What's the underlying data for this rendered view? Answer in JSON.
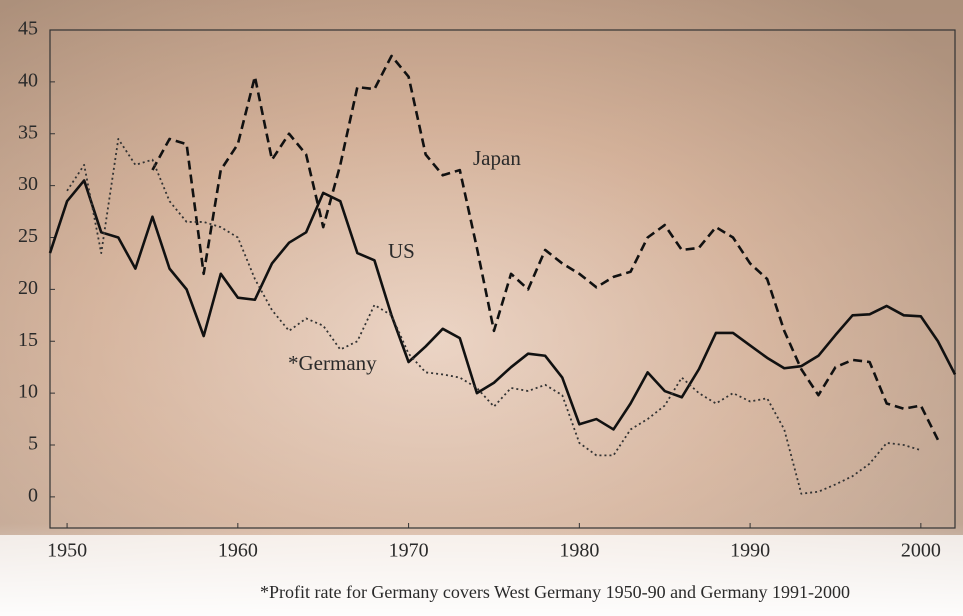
{
  "chart_data": {
    "type": "line",
    "footnote": "*Profit rate for Germany covers West Germany 1950-90 and Germany 1991-2000",
    "x": [
      1949,
      1950,
      1951,
      1952,
      1953,
      1954,
      1955,
      1956,
      1957,
      1958,
      1959,
      1960,
      1961,
      1962,
      1963,
      1964,
      1965,
      1966,
      1967,
      1968,
      1969,
      1970,
      1971,
      1972,
      1973,
      1974,
      1975,
      1976,
      1977,
      1978,
      1979,
      1980,
      1981,
      1982,
      1983,
      1984,
      1985,
      1986,
      1987,
      1988,
      1989,
      1990,
      1991,
      1992,
      1993,
      1994,
      1995,
      1996,
      1997,
      1998,
      1999,
      2000,
      2001,
      2002
    ],
    "series": [
      {
        "name": "US",
        "color": "#111111",
        "style": "solid",
        "values": [
          23.5,
          28.5,
          30.5,
          25.5,
          25,
          22,
          27,
          22,
          20,
          15.5,
          21.5,
          19.2,
          19,
          22.5,
          24.5,
          25.5,
          29.3,
          28.5,
          23.5,
          22.8,
          17.5,
          13,
          14.5,
          16.2,
          15.3,
          10,
          11,
          12.5,
          13.8,
          13.6,
          11.5,
          7,
          7.5,
          6.5,
          9,
          12,
          10.2,
          9.6,
          12.3,
          15.8,
          15.8,
          14.6,
          13.4,
          12.4,
          12.6,
          13.6,
          15.6,
          17.5,
          17.6,
          18.4,
          17.5,
          17.4,
          15,
          11.8
        ]
      },
      {
        "name": "Japan",
        "color": "#111111",
        "style": "dashed",
        "values": [
          null,
          null,
          null,
          null,
          null,
          null,
          31.5,
          34.5,
          34,
          21.5,
          31.5,
          34,
          40.5,
          32.5,
          35,
          33,
          26,
          32,
          39.5,
          39.3,
          42.5,
          40.5,
          33,
          31,
          31.5,
          24,
          16,
          21.5,
          20,
          23.8,
          22.5,
          21.5,
          20.2,
          21.2,
          21.7,
          25,
          26.2,
          23.8,
          24,
          26,
          25,
          22.5,
          21,
          16,
          12.3,
          9.8,
          12.5,
          13.2,
          13,
          9,
          8.5,
          8.8,
          5.5,
          null
        ]
      },
      {
        "name": "*Germany",
        "color": "#333333",
        "style": "dotted",
        "values": [
          null,
          29.5,
          32,
          23.5,
          34.5,
          32,
          32.5,
          28.5,
          26.5,
          26.5,
          26,
          25,
          21,
          18,
          16,
          17.2,
          16.5,
          14.2,
          15,
          18.5,
          17.5,
          13.8,
          12,
          11.8,
          11.5,
          10.5,
          8.7,
          10.5,
          10.2,
          10.8,
          9.8,
          5.2,
          4,
          4,
          6.5,
          7.5,
          8.8,
          11.5,
          10,
          9,
          10,
          9.2,
          9.5,
          6.5,
          0.3,
          0.5,
          1.2,
          2,
          3.2,
          5.2,
          5,
          4.5,
          null,
          null
        ]
      }
    ],
    "xlim": [
      1949,
      2002
    ],
    "xticks": [
      1950,
      1960,
      1970,
      1980,
      1990,
      2000
    ],
    "ylim": [
      -3,
      45
    ],
    "yticks": [
      0,
      5,
      10,
      15,
      20,
      25,
      30,
      35,
      40,
      45
    ]
  }
}
